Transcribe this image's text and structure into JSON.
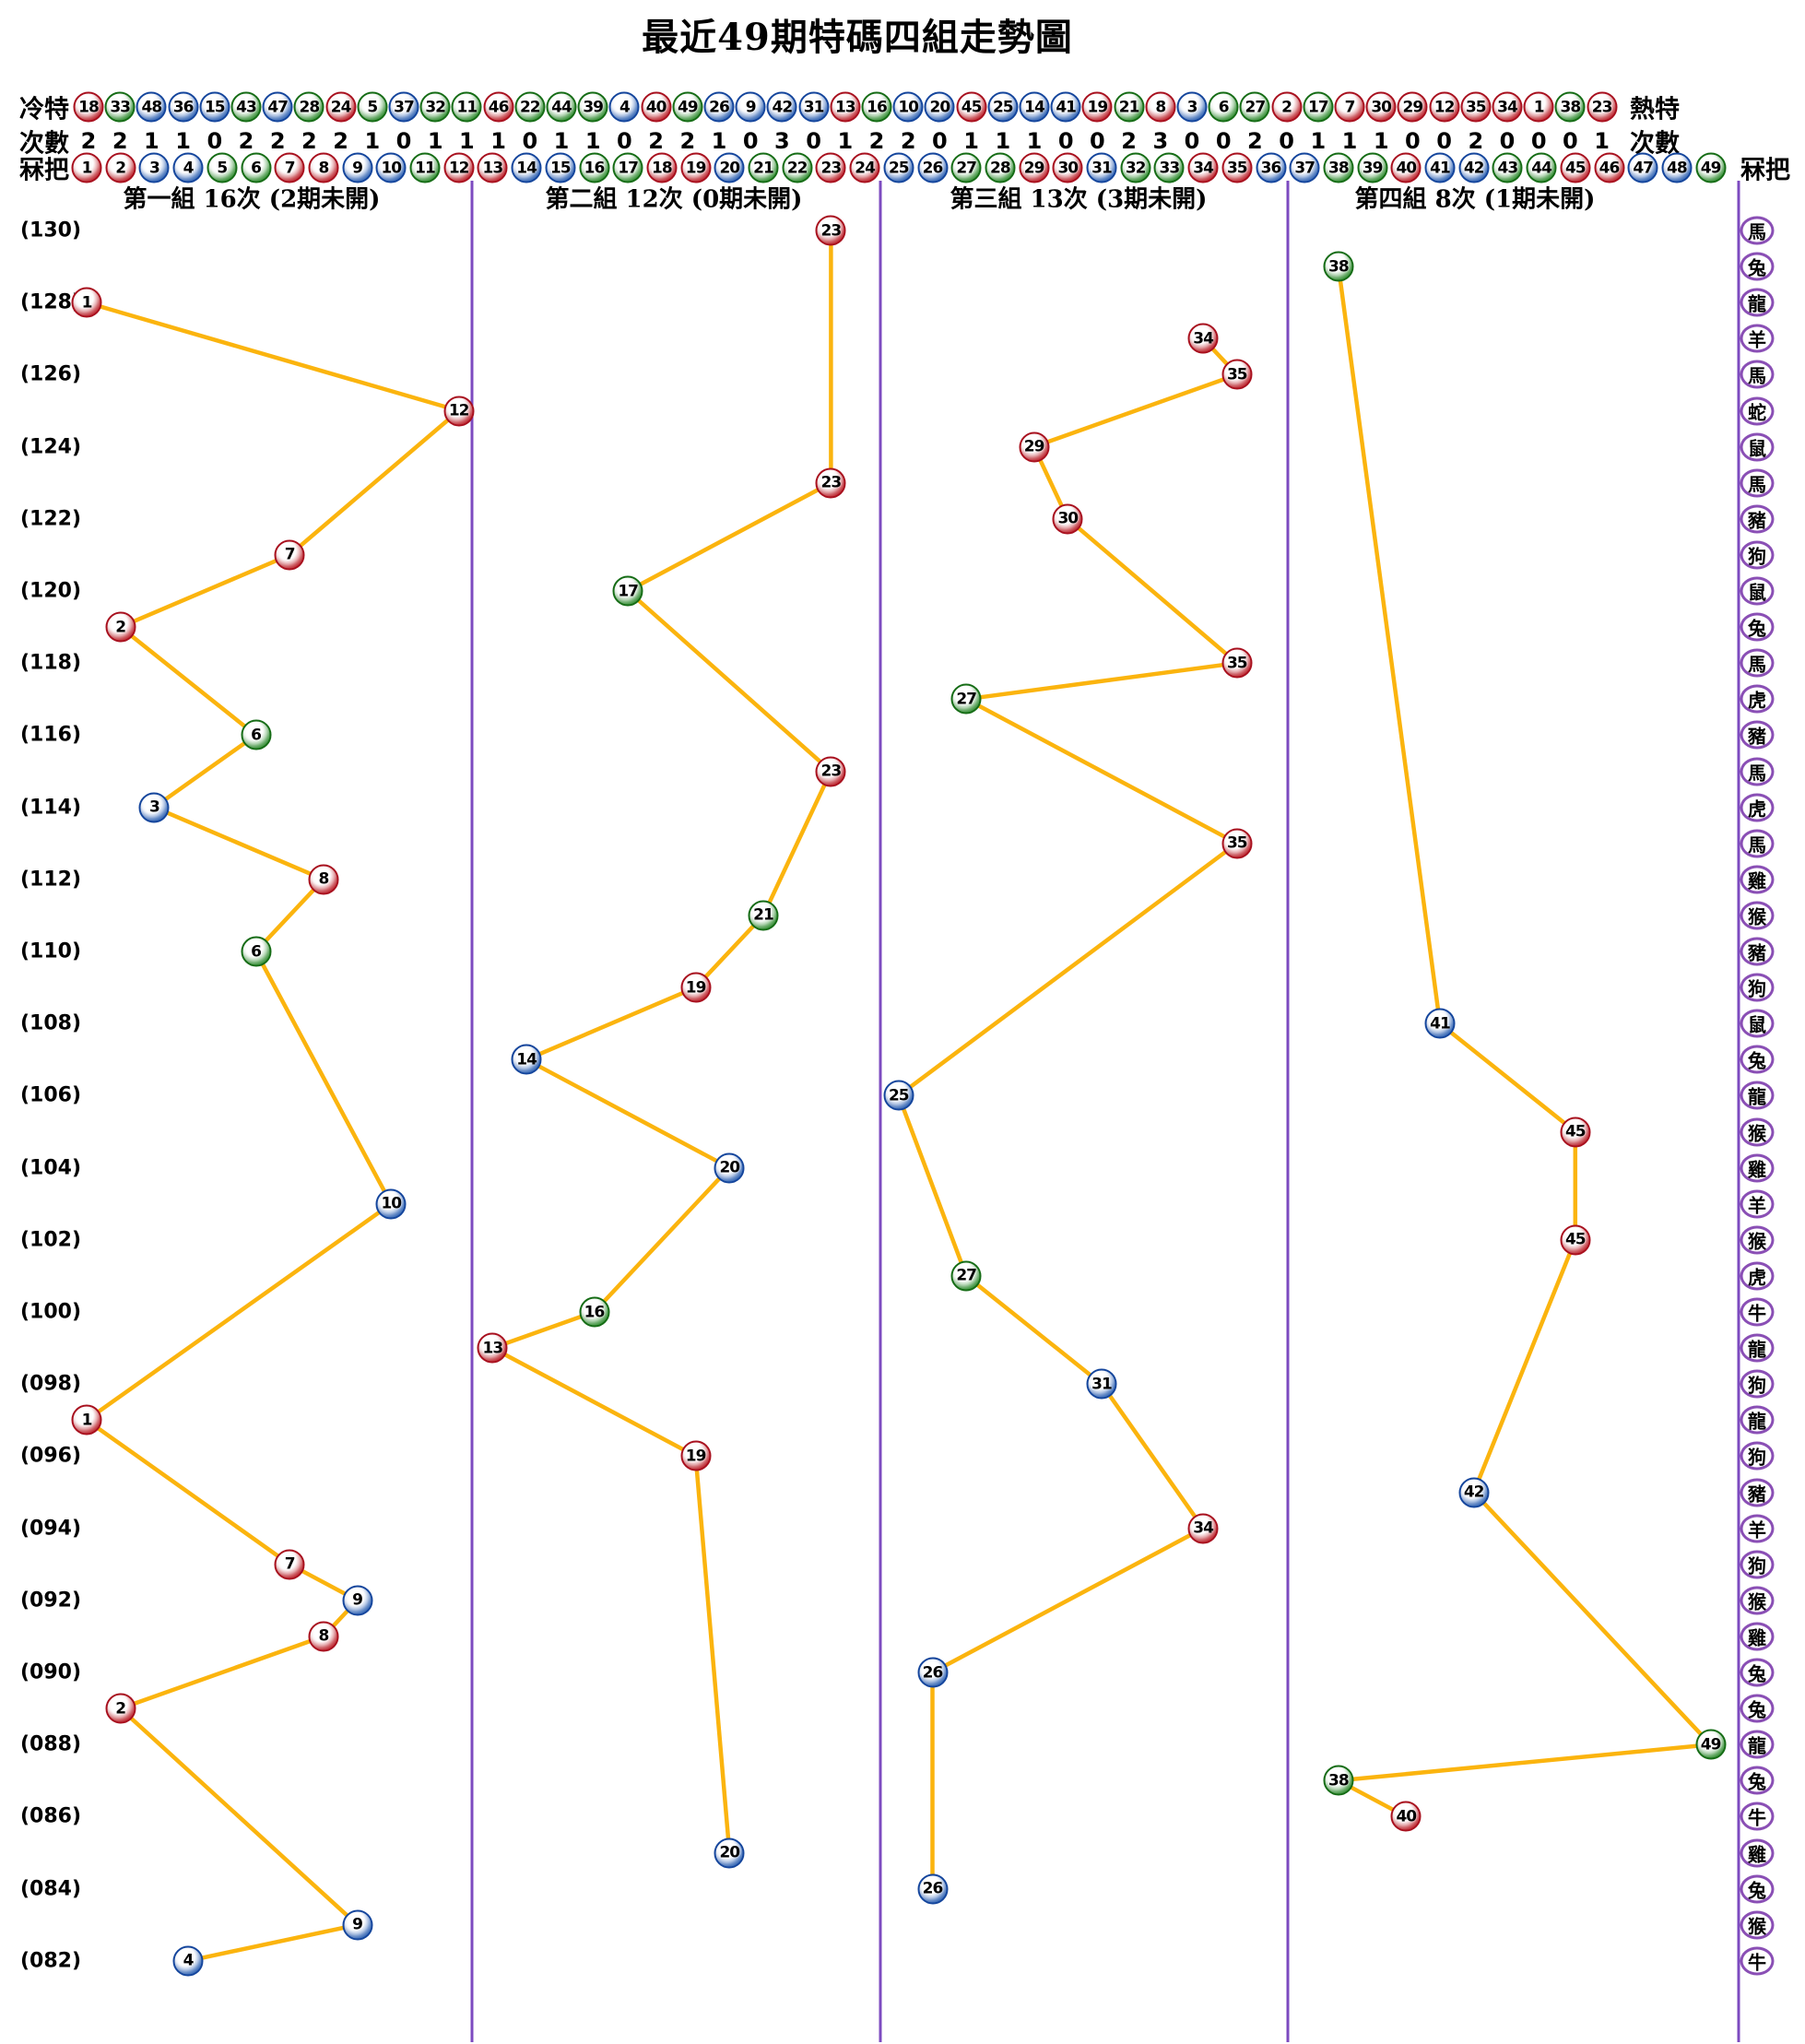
{
  "title": "最近49期特碼四組走勢圖",
  "chart_data": {
    "type": "line",
    "title": "最近49期特碼四組走勢圖",
    "legend_position": "none",
    "grid": false,
    "y_axis_periods_visible": [
      "(130)",
      "(128)",
      "(126)",
      "(124)",
      "(122)",
      "(120)",
      "(118)",
      "(116)",
      "(114)",
      "(112)",
      "(110)",
      "(108)",
      "(106)",
      "(104)",
      "(102)",
      "(100)",
      "(098)",
      "(096)",
      "(094)",
      "(092)",
      "(090)",
      "(088)",
      "(086)",
      "(084)",
      "(082)"
    ],
    "header": {
      "cold_label": "冷特",
      "hot_label": "熱特",
      "count_label": "次數",
      "number_label": "冧把",
      "cold_sequence": [
        18,
        33,
        48,
        36,
        15,
        43,
        47,
        28,
        24,
        5,
        37,
        32,
        11,
        46,
        22,
        44,
        39,
        4,
        40,
        49,
        26,
        9,
        42,
        31,
        13,
        16,
        10,
        20,
        45,
        25,
        14,
        41,
        19,
        21,
        8,
        3,
        6,
        27,
        2,
        17,
        7,
        30,
        29,
        12,
        35,
        34,
        1,
        38,
        23
      ],
      "counts": [
        2,
        2,
        1,
        1,
        0,
        2,
        2,
        2,
        2,
        1,
        0,
        1,
        1,
        1,
        0,
        1,
        1,
        0,
        2,
        2,
        1,
        0,
        3,
        0,
        1,
        2,
        2,
        0,
        1,
        1,
        1,
        0,
        0,
        2,
        3,
        0,
        0,
        2,
        0,
        1,
        1,
        1,
        0,
        0,
        2,
        0,
        0,
        0,
        1
      ],
      "number_sequence": [
        1,
        2,
        3,
        4,
        5,
        6,
        7,
        8,
        9,
        10,
        11,
        12,
        13,
        14,
        15,
        16,
        17,
        18,
        19,
        20,
        21,
        22,
        23,
        24,
        25,
        26,
        27,
        28,
        29,
        30,
        31,
        32,
        33,
        34,
        35,
        36,
        37,
        38,
        39,
        40,
        41,
        42,
        43,
        44,
        45,
        46,
        47,
        48,
        49
      ]
    },
    "groups": [
      {
        "title": "第一組 16次 (2期未開)",
        "start": 1,
        "end": 12
      },
      {
        "title": "第二組 12次 (0期未開)",
        "start": 13,
        "end": 24
      },
      {
        "title": "第三組 13次 (3期未開)",
        "start": 25,
        "end": 36
      },
      {
        "title": "第四組 8次 (1期未開)",
        "start": 37,
        "end": 49
      }
    ],
    "draws": [
      {
        "period": 130,
        "number": 23,
        "zodiac": "馬"
      },
      {
        "period": 129,
        "number": 38,
        "zodiac": "兔"
      },
      {
        "period": 128,
        "number": 1,
        "zodiac": "龍"
      },
      {
        "period": 127,
        "number": 34,
        "zodiac": "羊"
      },
      {
        "period": 126,
        "number": 35,
        "zodiac": "馬"
      },
      {
        "period": 125,
        "number": 12,
        "zodiac": "蛇"
      },
      {
        "period": 124,
        "number": 29,
        "zodiac": "鼠"
      },
      {
        "period": 123,
        "number": 23,
        "zodiac": "馬"
      },
      {
        "period": 122,
        "number": 30,
        "zodiac": "豬"
      },
      {
        "period": 121,
        "number": 7,
        "zodiac": "狗"
      },
      {
        "period": 120,
        "number": 17,
        "zodiac": "鼠"
      },
      {
        "period": 119,
        "number": 2,
        "zodiac": "兔"
      },
      {
        "period": 118,
        "number": 35,
        "zodiac": "馬"
      },
      {
        "period": 117,
        "number": 27,
        "zodiac": "虎"
      },
      {
        "period": 116,
        "number": 6,
        "zodiac": "豬"
      },
      {
        "period": 115,
        "number": 23,
        "zodiac": "馬"
      },
      {
        "period": 114,
        "number": 3,
        "zodiac": "虎"
      },
      {
        "period": 113,
        "number": 35,
        "zodiac": "馬"
      },
      {
        "period": 112,
        "number": 8,
        "zodiac": "雞"
      },
      {
        "period": 111,
        "number": 21,
        "zodiac": "猴"
      },
      {
        "period": 110,
        "number": 6,
        "zodiac": "豬"
      },
      {
        "period": 109,
        "number": 19,
        "zodiac": "狗"
      },
      {
        "period": 108,
        "number": 41,
        "zodiac": "鼠"
      },
      {
        "period": 107,
        "number": 14,
        "zodiac": "兔"
      },
      {
        "period": 106,
        "number": 25,
        "zodiac": "龍"
      },
      {
        "period": 105,
        "number": 45,
        "zodiac": "猴"
      },
      {
        "period": 104,
        "number": 20,
        "zodiac": "雞"
      },
      {
        "period": 103,
        "number": 10,
        "zodiac": "羊"
      },
      {
        "period": 102,
        "number": 45,
        "zodiac": "猴"
      },
      {
        "period": 101,
        "number": 27,
        "zodiac": "虎"
      },
      {
        "period": 100,
        "number": 16,
        "zodiac": "牛"
      },
      {
        "period": 99,
        "number": 13,
        "zodiac": "龍"
      },
      {
        "period": 98,
        "number": 31,
        "zodiac": "狗"
      },
      {
        "period": 97,
        "number": 1,
        "zodiac": "龍"
      },
      {
        "period": 96,
        "number": 19,
        "zodiac": "狗"
      },
      {
        "period": 95,
        "number": 42,
        "zodiac": "豬"
      },
      {
        "period": 94,
        "number": 34,
        "zodiac": "羊"
      },
      {
        "period": 93,
        "number": 7,
        "zodiac": "狗"
      },
      {
        "period": 92,
        "number": 9,
        "zodiac": "猴"
      },
      {
        "period": 91,
        "number": 8,
        "zodiac": "雞"
      },
      {
        "period": 90,
        "number": 26,
        "zodiac": "兔"
      },
      {
        "period": 89,
        "number": 2,
        "zodiac": "兔"
      },
      {
        "period": 88,
        "number": 49,
        "zodiac": "龍"
      },
      {
        "period": 87,
        "number": 38,
        "zodiac": "兔"
      },
      {
        "period": 86,
        "number": 40,
        "zodiac": "牛"
      },
      {
        "period": 85,
        "number": 20,
        "zodiac": "雞"
      },
      {
        "period": 84,
        "number": 26,
        "zodiac": "兔"
      },
      {
        "period": 83,
        "number": 9,
        "zodiac": "猴"
      },
      {
        "period": 82,
        "number": 4,
        "zodiac": "牛"
      }
    ],
    "ball_colors": {
      "red": [
        1,
        2,
        7,
        8,
        12,
        13,
        18,
        19,
        23,
        24,
        29,
        30,
        34,
        35,
        40,
        45,
        46
      ],
      "blue": [
        3,
        4,
        9,
        10,
        14,
        15,
        20,
        25,
        26,
        31,
        36,
        37,
        41,
        42,
        47,
        48
      ],
      "green": [
        5,
        6,
        11,
        16,
        17,
        21,
        22,
        27,
        28,
        32,
        33,
        38,
        39,
        43,
        44,
        49
      ]
    },
    "colors": {
      "red_ball": "#c21f2c",
      "blue_ball": "#2b6fc9",
      "green_ball": "#2f9e3c",
      "trend_line": "#fbb40e",
      "divider": "#7d4bc0",
      "zodiac_ring": "#8a4fb5",
      "text": "#000000"
    }
  }
}
